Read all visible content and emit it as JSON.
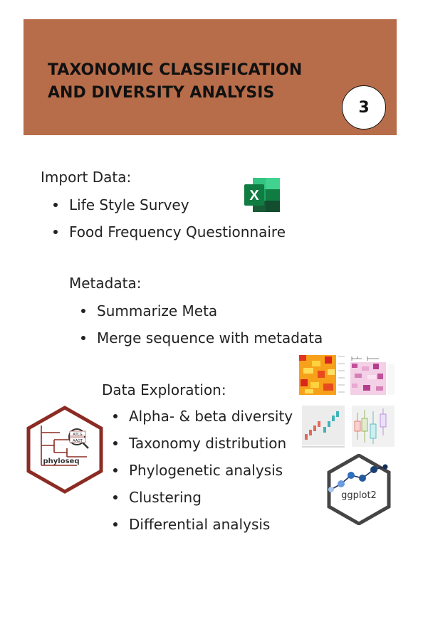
{
  "banner": {
    "title_line1": "TAXONOMIC CLASSIFICATION",
    "title_line2": "AND DIVERSITY ANALYSIS",
    "step_number": "3",
    "background_color": "#b86d4a"
  },
  "import_section": {
    "heading": "Import Data:",
    "items": [
      "Life Style Survey",
      "Food Frequency Questionnaire"
    ],
    "icon": "excel-icon",
    "icon_letter": "X"
  },
  "metadata_section": {
    "heading": "Metadata:",
    "items": [
      "Summarize Meta",
      "Merge sequence with metadata"
    ]
  },
  "exploration_section": {
    "heading": "Data Exploration:",
    "items": [
      "Alpha- & beta diversity",
      "Taxonomy distribution",
      "Phylogenetic analysis",
      "Clustering",
      "Differential analysis"
    ]
  },
  "logos": {
    "phyloseq": {
      "label": "phyloseq",
      "tag_top": "ATCG",
      "tag_bottom": "AAGT"
    },
    "ggplot2": {
      "label": "ggplot2"
    }
  },
  "plot_thumbnails": [
    "heatmap-thumbnail",
    "pink-heatmap-thumbnail",
    "scatter-boxplot-thumbnail",
    "boxplot-thumbnail"
  ]
}
